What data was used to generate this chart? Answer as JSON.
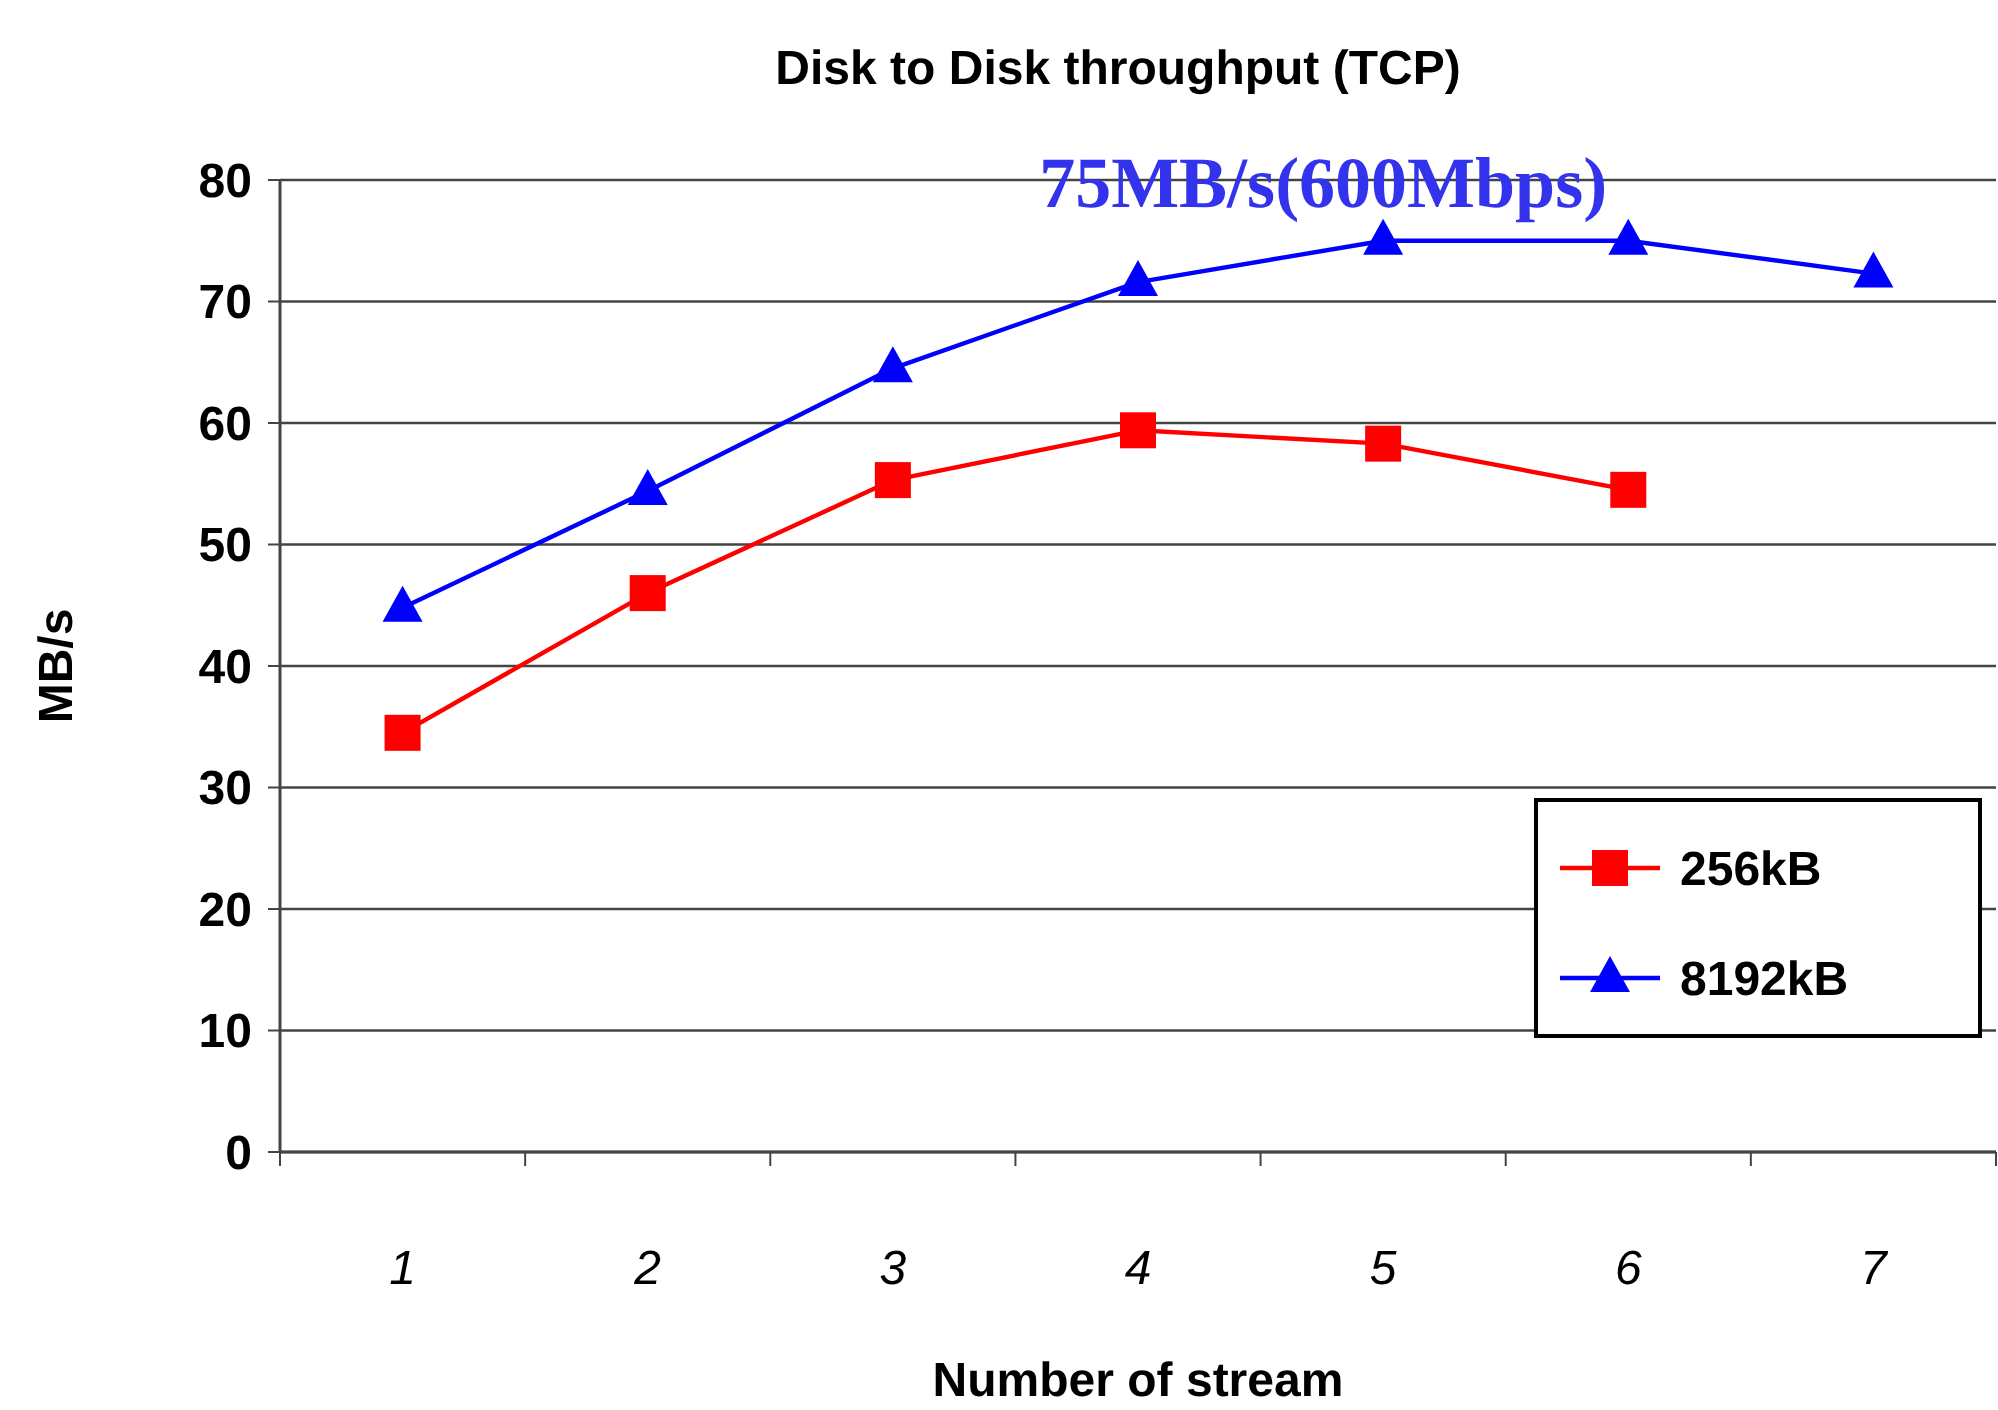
{
  "chart_data": {
    "type": "line",
    "title": "Disk to Disk throughput (TCP)",
    "xlabel": "Number of stream",
    "ylabel": "MB/s",
    "categories": [
      "1",
      "2",
      "3",
      "4",
      "5",
      "6",
      "7"
    ],
    "series": [
      {
        "name": "256kB",
        "color": "#ff0000",
        "marker": "square",
        "values": [
          34.5,
          46,
          55.3,
          59.4,
          58.3,
          54.5,
          null
        ]
      },
      {
        "name": "8192kB",
        "color": "#0000ff",
        "marker": "triangle",
        "values": [
          44.8,
          54.4,
          64.5,
          71.6,
          75,
          75,
          72.3
        ]
      }
    ],
    "annotations": [
      {
        "text": "75MB/s(600Mbps)",
        "x": "5",
        "y": 75
      }
    ],
    "ylim": [
      0,
      80
    ],
    "yticks": [
      0,
      10,
      20,
      30,
      40,
      50,
      60,
      70,
      80
    ],
    "grid": "y",
    "legend": "bottom right",
    "line_style": "solid"
  }
}
